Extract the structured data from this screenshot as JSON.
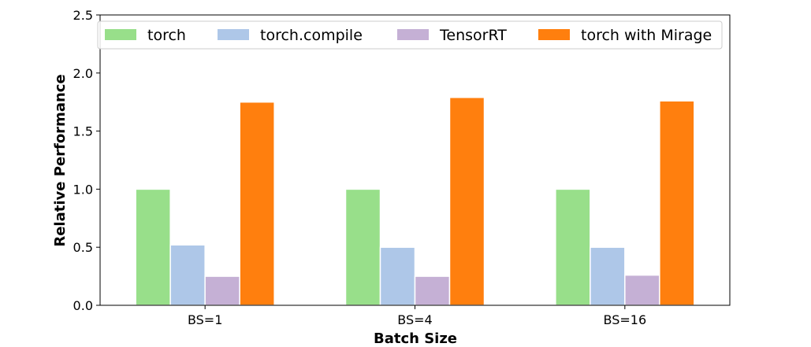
{
  "chart_data": {
    "type": "bar",
    "categories": [
      "BS=1",
      "BS=4",
      "BS=16"
    ],
    "series": [
      {
        "name": "torch",
        "values": [
          1.0,
          1.0,
          1.0
        ],
        "color": "#98df8a"
      },
      {
        "name": "torch.compile",
        "values": [
          0.52,
          0.5,
          0.5
        ],
        "color": "#aec7e8"
      },
      {
        "name": "TensorRT",
        "values": [
          0.25,
          0.25,
          0.26
        ],
        "color": "#c5b0d5"
      },
      {
        "name": "torch with Mirage",
        "values": [
          1.75,
          1.79,
          1.76
        ],
        "color": "#ff7f0e"
      }
    ],
    "title": "",
    "xlabel": "Batch Size",
    "ylabel": "Relative Performance",
    "ylim": [
      0,
      2.5
    ],
    "yticks": [
      "0.0",
      "0.5",
      "1.0",
      "1.5",
      "2.0",
      "2.5"
    ],
    "grid": false,
    "legend_position": "top"
  }
}
